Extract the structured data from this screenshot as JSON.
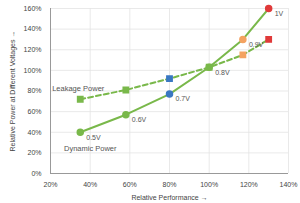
{
  "chart_data": {
    "type": "line",
    "x_label": "Relative Performance",
    "y_label": "Relative Power at Different Voltages",
    "x": [
      35,
      58,
      80,
      100,
      117,
      130
    ],
    "xlim": [
      20,
      140
    ],
    "xticks": [
      {
        "value": 20,
        "label": "20%"
      },
      {
        "value": 40,
        "label": "40%"
      },
      {
        "value": 60,
        "label": "60%"
      },
      {
        "value": 80,
        "label": "80%"
      },
      {
        "value": 100,
        "label": "100%"
      },
      {
        "value": 120,
        "label": "120%"
      },
      {
        "value": 140,
        "label": "140%"
      }
    ],
    "ylim": [
      0,
      160
    ],
    "yticks": [
      {
        "value": 0,
        "label": "0%"
      },
      {
        "value": 20,
        "label": "20%"
      },
      {
        "value": 40,
        "label": "40%"
      },
      {
        "value": 60,
        "label": "60%"
      },
      {
        "value": 80,
        "label": "80%"
      },
      {
        "value": 100,
        "label": "100%"
      },
      {
        "value": 120,
        "label": "120%"
      },
      {
        "value": 140,
        "label": "140%"
      },
      {
        "value": 160,
        "label": "160%"
      }
    ],
    "grid": true,
    "series": [
      {
        "name": "Leakage Power",
        "color": "#79b84a",
        "marker": "square",
        "line_style": "dashed",
        "colors": [
          "#79b84a",
          "#79b84a",
          "#3a78c2",
          "#79b84a",
          "#f4a261",
          "#e03a3a"
        ],
        "values": [
          72,
          81,
          92,
          103,
          115,
          130
        ]
      },
      {
        "name": "Dynamic Power",
        "color": "#79b84a",
        "marker": "circle",
        "line_style": "solid",
        "colors": [
          "#79b84a",
          "#79b84a",
          "#3a78c2",
          "#79b84a",
          "#f4a261",
          "#e03a3a"
        ],
        "labels": [
          "0.5V",
          "0.6V",
          "0.7V",
          "0.8V",
          "0.9V",
          "1V"
        ],
        "values": [
          40,
          57,
          77,
          103,
          130,
          160
        ]
      }
    ]
  }
}
